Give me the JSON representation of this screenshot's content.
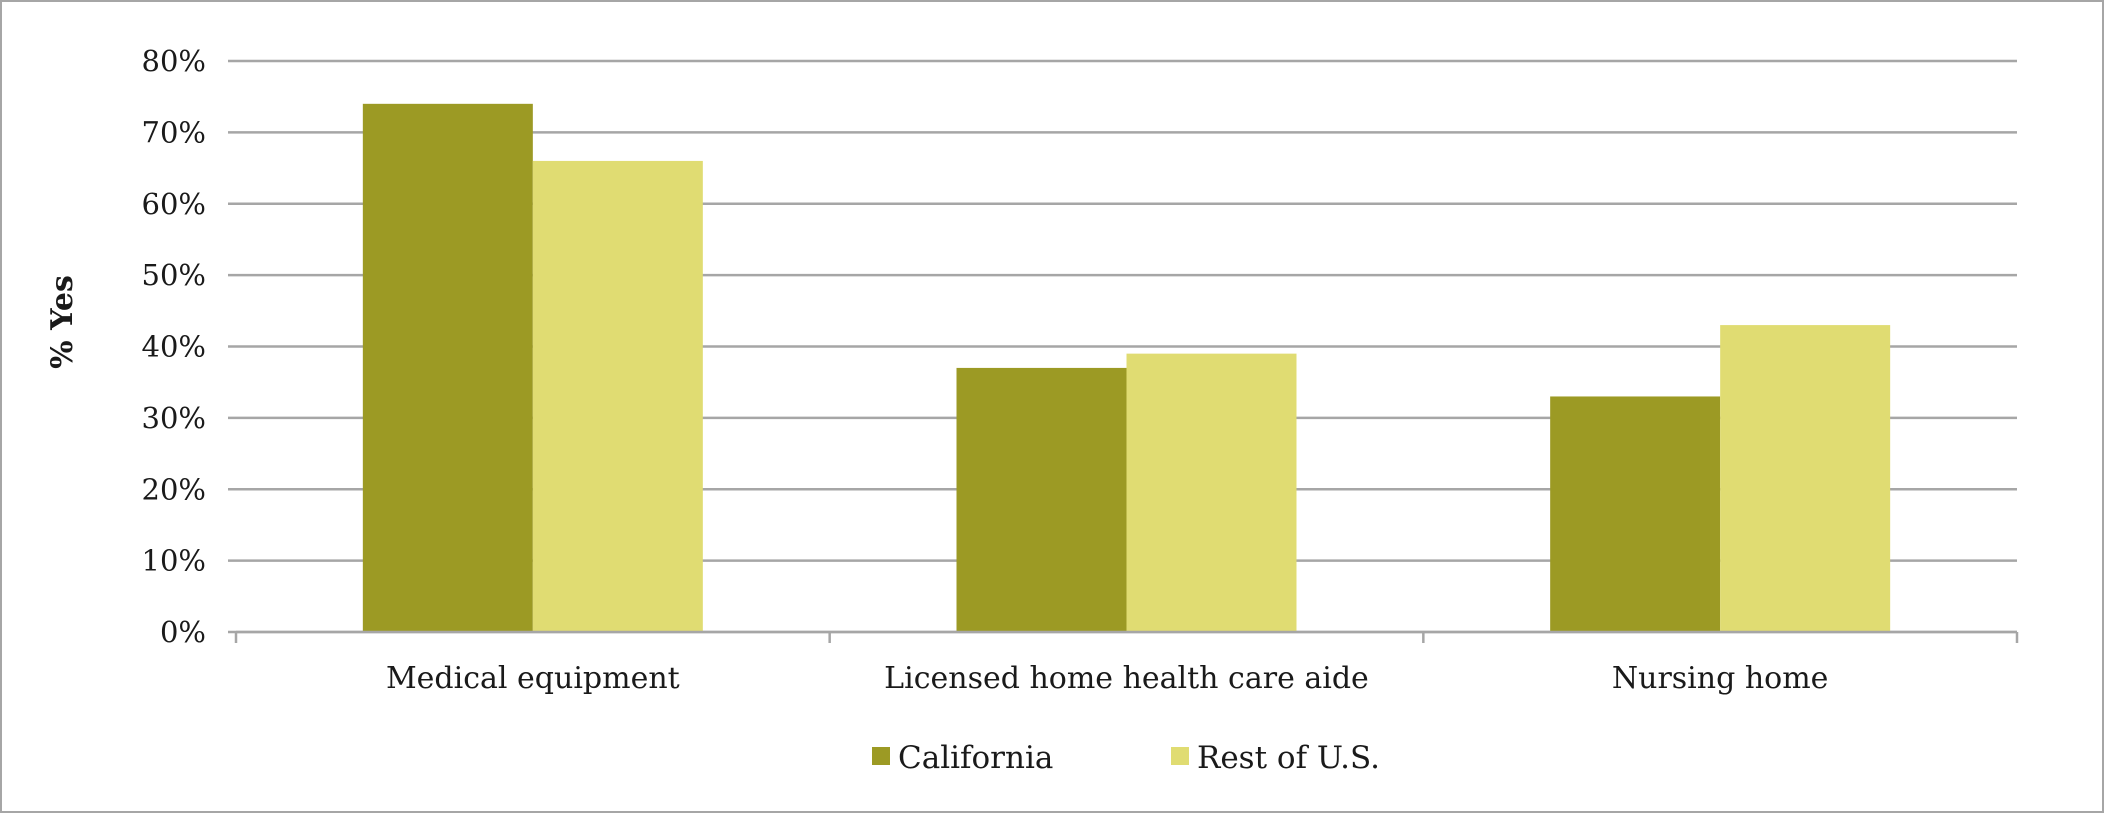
{
  "chart_data": {
    "type": "bar",
    "title": "",
    "xlabel": "",
    "ylabel": "% Yes",
    "ylim": [
      0,
      80
    ],
    "y_ticks": [
      "0%",
      "10%",
      "20%",
      "30%",
      "40%",
      "50%",
      "60%",
      "70%",
      "80%"
    ],
    "categories": [
      "Medical equipment",
      "Licensed home health care aide",
      "Nursing home"
    ],
    "series": [
      {
        "name": "California",
        "values": [
          74,
          37,
          33
        ],
        "color": "#9c9a24"
      },
      {
        "name": "Rest of U.S.",
        "values": [
          66,
          39,
          43
        ],
        "color": "#e0dc72"
      }
    ],
    "grid": true,
    "legend_position": "bottom"
  }
}
